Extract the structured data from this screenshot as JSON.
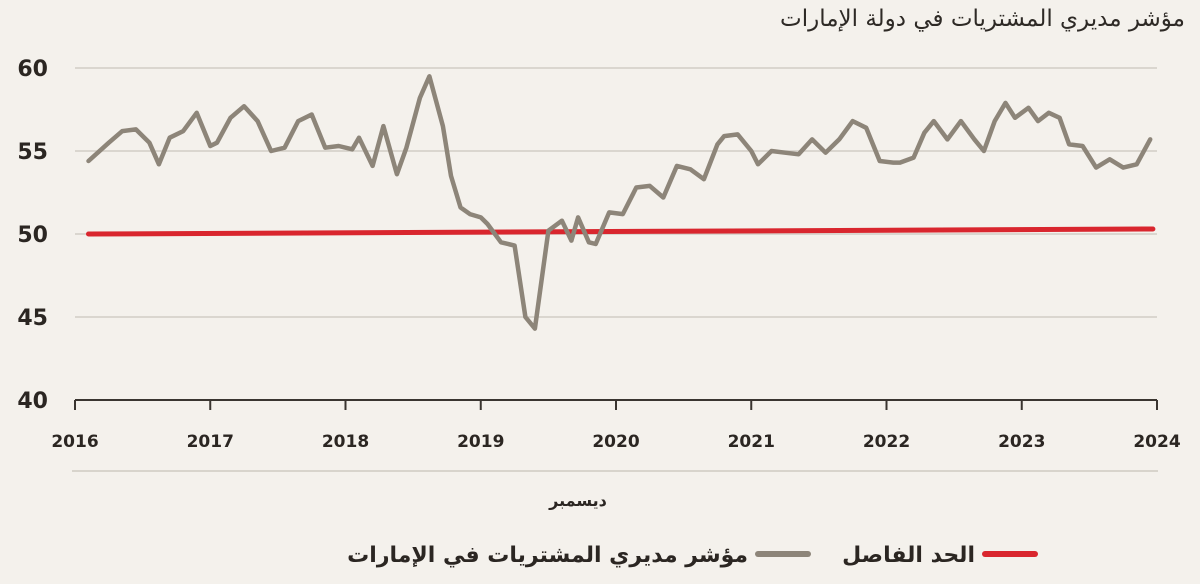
{
  "chart_data": {
    "type": "line",
    "title": "مؤشر مديري المشتريات في دولة الإمارات",
    "xlabel": "ديسمبر",
    "ylabel": "",
    "xlim": [
      2016,
      2024
    ],
    "ylim": [
      40,
      60
    ],
    "xticks": [
      "2016",
      "2017",
      "2018",
      "2019",
      "2020",
      "2021",
      "2022",
      "2023",
      "2024"
    ],
    "yticks": [
      "40",
      "45",
      "50",
      "55",
      "60"
    ],
    "grid": true,
    "legend_position": "bottom",
    "series": [
      {
        "name": "مؤشر مديري المشتريات في الإمارات",
        "color": "#8d8579",
        "x": [
          2016.1,
          2016.25,
          2016.35,
          2016.45,
          2016.55,
          2016.62,
          2016.7,
          2016.8,
          2016.9,
          2017.0,
          2017.05,
          2017.15,
          2017.25,
          2017.35,
          2017.45,
          2017.55,
          2017.65,
          2017.75,
          2017.85,
          2017.95,
          2018.05,
          2018.1,
          2018.2,
          2018.28,
          2018.38,
          2018.45,
          2018.55,
          2018.62,
          2018.72,
          2018.78,
          2018.85,
          2018.92,
          2019.0,
          2019.05,
          2019.15,
          2019.25,
          2019.33,
          2019.4,
          2019.5,
          2019.6,
          2019.67,
          2019.72,
          2019.8,
          2019.85,
          2019.95,
          2020.05,
          2020.15,
          2020.25,
          2020.35,
          2020.45,
          2020.55,
          2020.65,
          2020.75,
          2020.8,
          2020.9,
          2021.0,
          2021.05,
          2021.15,
          2021.25,
          2021.35,
          2021.45,
          2021.55,
          2021.65,
          2021.75,
          2021.85,
          2021.95,
          2022.05,
          2022.1,
          2022.2,
          2022.28,
          2022.35,
          2022.45,
          2022.55,
          2022.65,
          2022.72,
          2022.8,
          2022.88,
          2022.95,
          2023.05,
          2023.12,
          2023.2,
          2023.28,
          2023.35,
          2023.45,
          2023.55,
          2023.65,
          2023.75,
          2023.85,
          2023.95
        ],
        "values": [
          54.4,
          55.5,
          56.2,
          56.3,
          55.5,
          54.2,
          55.8,
          56.2,
          57.3,
          55.3,
          55.5,
          57.0,
          57.7,
          56.8,
          55.0,
          55.2,
          56.8,
          57.2,
          55.2,
          55.3,
          55.1,
          55.8,
          54.1,
          56.5,
          53.6,
          55.2,
          58.2,
          59.5,
          56.5,
          53.5,
          51.6,
          51.2,
          51.0,
          50.6,
          49.5,
          49.3,
          45.0,
          44.3,
          50.2,
          50.8,
          49.6,
          51.0,
          49.5,
          49.4,
          51.3,
          51.2,
          52.8,
          52.9,
          52.2,
          54.1,
          53.9,
          53.3,
          55.4,
          55.9,
          56.0,
          55.0,
          54.2,
          55.0,
          54.9,
          54.8,
          55.7,
          54.9,
          55.7,
          56.8,
          56.4,
          54.4,
          54.3,
          54.3,
          54.6,
          56.1,
          56.8,
          55.7,
          56.8,
          55.7,
          55.0,
          56.8,
          57.9,
          57.0,
          57.6,
          56.8,
          57.3,
          57.0,
          55.4,
          55.3,
          54.0,
          54.5,
          54.0,
          54.2,
          55.7
        ]
      },
      {
        "name": "الحد الفاصل",
        "color": "#d9262e",
        "x": [
          2016.1,
          2023.97
        ],
        "values": [
          50.0,
          50.3
        ]
      }
    ]
  }
}
